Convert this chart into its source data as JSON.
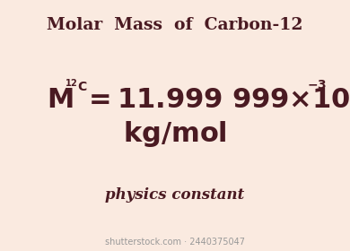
{
  "bg_color": "#faeae0",
  "text_color": "#4a1a22",
  "title": "Molar  Mass  of  Carbon-12",
  "title_fontsize": 13.5,
  "title_fontweight": "bold",
  "subtitle": "physics constant",
  "subtitle_fontsize": 12,
  "watermark": "shutterstock.com · 2440375047",
  "watermark_fontsize": 7,
  "main_fontsize": 22,
  "sup_fontsize": 10,
  "units_fontsize": 22
}
